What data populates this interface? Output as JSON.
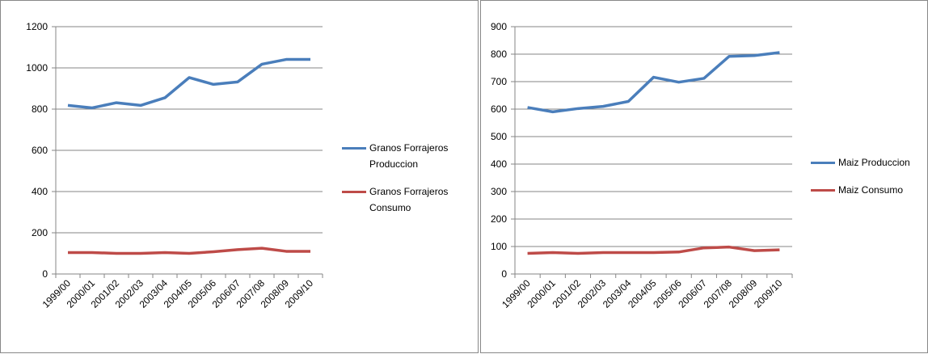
{
  "chart_data": [
    {
      "type": "line",
      "categories": [
        "1999/00",
        "2000/01",
        "2001/02",
        "2002/03",
        "2003/04",
        "2004/05",
        "2005/06",
        "2006/07",
        "2007/08",
        "2008/09",
        "2009/10"
      ],
      "series": [
        {
          "name": "Granos Forrajeros Produccion",
          "color": "#4a7ebb",
          "values": [
            818,
            806,
            831,
            818,
            855,
            953,
            920,
            932,
            1018,
            1041,
            1041
          ]
        },
        {
          "name": "Granos Forrajeros Consumo",
          "color": "#be4b48",
          "values": [
            104,
            104,
            100,
            100,
            104,
            100,
            108,
            118,
            125,
            110,
            110
          ]
        }
      ],
      "ylim": [
        0,
        1200
      ],
      "yticks": [
        0,
        200,
        400,
        600,
        800,
        1000,
        1200
      ],
      "grid": true
    },
    {
      "type": "line",
      "categories": [
        "1999/00",
        "2000/01",
        "2001/02",
        "2002/03",
        "2003/04",
        "2004/05",
        "2005/06",
        "2006/07",
        "2007/08",
        "2008/09",
        "2009/10"
      ],
      "series": [
        {
          "name": "Maiz Produccion",
          "color": "#4a7ebb",
          "values": [
            606,
            590,
            602,
            610,
            628,
            716,
            698,
            712,
            792,
            795,
            806
          ]
        },
        {
          "name": "Maiz Consumo",
          "color": "#be4b48",
          "values": [
            75,
            78,
            75,
            78,
            78,
            78,
            80,
            95,
            98,
            85,
            88
          ]
        }
      ],
      "ylim": [
        0,
        900
      ],
      "yticks": [
        0,
        100,
        200,
        300,
        400,
        500,
        600,
        700,
        800,
        900
      ],
      "grid": true
    }
  ]
}
